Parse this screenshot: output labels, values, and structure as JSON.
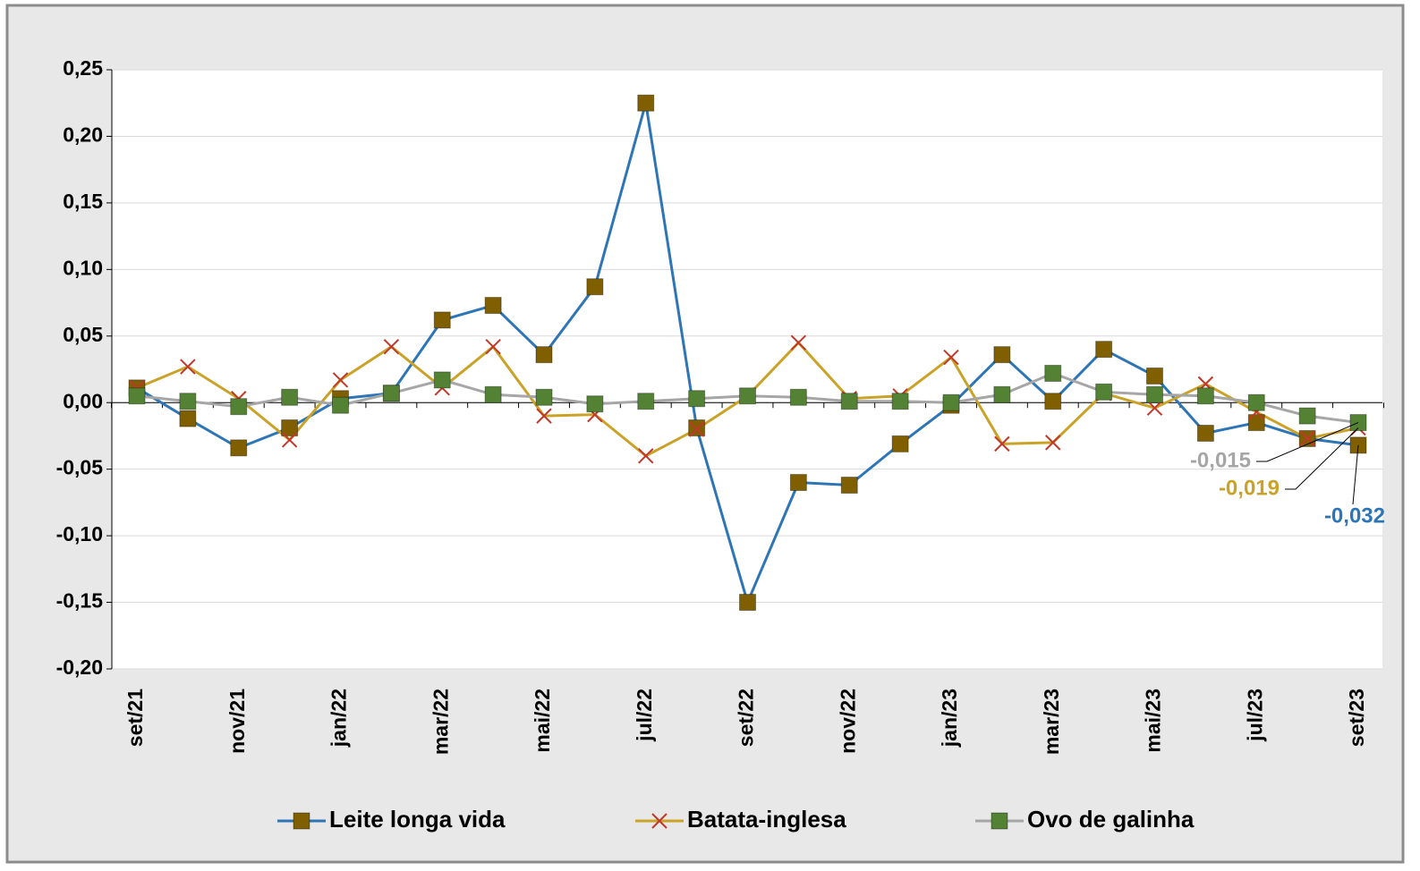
{
  "chart_data": {
    "type": "line",
    "categories": [
      "set/21",
      null,
      "nov/21",
      null,
      "jan/22",
      null,
      "mar/22",
      null,
      "mai/22",
      null,
      "jul/22",
      null,
      "set/22",
      null,
      "nov/22",
      null,
      "jan/23",
      null,
      "mar/23",
      null,
      "mai/23",
      null,
      "jul/23",
      null,
      "set/23"
    ],
    "ylim": [
      -0.2,
      0.25
    ],
    "yticks": [
      {
        "value": -0.2,
        "label": "-0,20"
      },
      {
        "value": -0.15,
        "label": "-0,15"
      },
      {
        "value": -0.1,
        "label": "-0,10"
      },
      {
        "value": -0.05,
        "label": "-0,05"
      },
      {
        "value": 0,
        "label": "0,00"
      },
      {
        "value": 0.05,
        "label": "0,05"
      },
      {
        "value": 0.1,
        "label": "0,10"
      },
      {
        "value": 0.15,
        "label": "0,15"
      },
      {
        "value": 0.2,
        "label": "0,20"
      },
      {
        "value": 0.25,
        "label": "0,25"
      }
    ],
    "grid": true,
    "legend": "bottom",
    "series": [
      {
        "name": "Leite longa vida",
        "color": "#2e75b6",
        "marker": "square",
        "marker_color": "#7f5f00",
        "values": [
          0.011,
          -0.012,
          -0.034,
          -0.019,
          0.003,
          0.007,
          0.062,
          0.073,
          0.036,
          0.087,
          0.225,
          -0.019,
          -0.15,
          -0.06,
          -0.062,
          -0.031,
          -0.002,
          0.036,
          0.001,
          0.04,
          0.02,
          -0.023,
          -0.015,
          -0.027,
          -0.032
        ],
        "value_labels": [
          null,
          null,
          null,
          null,
          null,
          null,
          null,
          null,
          null,
          null,
          null,
          null,
          null,
          null,
          null,
          null,
          null,
          null,
          null,
          null,
          null,
          null,
          null,
          null,
          "-0,032"
        ]
      },
      {
        "name": "Batata-inglesa",
        "color": "#c9a227",
        "marker": "x",
        "marker_color": "#c0392b",
        "values": [
          0.011,
          0.027,
          0.003,
          -0.028,
          0.017,
          0.042,
          0.011,
          0.042,
          -0.01,
          -0.009,
          -0.04,
          -0.02,
          0.005,
          0.045,
          0.003,
          0.005,
          0.034,
          -0.031,
          -0.03,
          0.007,
          -0.004,
          0.014,
          -0.007,
          -0.027,
          -0.019
        ],
        "value_labels": [
          null,
          null,
          null,
          null,
          null,
          null,
          null,
          null,
          null,
          null,
          null,
          null,
          null,
          null,
          null,
          null,
          null,
          null,
          null,
          null,
          null,
          null,
          null,
          null,
          "-0,019"
        ]
      },
      {
        "name": "Ovo de galinha",
        "color": "#a6a6a6",
        "marker": "square",
        "marker_color": "#548235",
        "values": [
          0.005,
          0.001,
          -0.003,
          0.004,
          -0.002,
          0.007,
          0.017,
          0.006,
          0.004,
          -0.001,
          0.001,
          0.003,
          0.005,
          0.004,
          0.001,
          0.001,
          0.0,
          0.006,
          0.022,
          0.008,
          0.006,
          0.005,
          0.0,
          -0.01,
          -0.015
        ],
        "value_labels": [
          null,
          null,
          null,
          null,
          null,
          null,
          null,
          null,
          null,
          null,
          null,
          null,
          null,
          null,
          null,
          null,
          null,
          null,
          null,
          null,
          null,
          null,
          null,
          null,
          "-0,015"
        ]
      }
    ]
  }
}
